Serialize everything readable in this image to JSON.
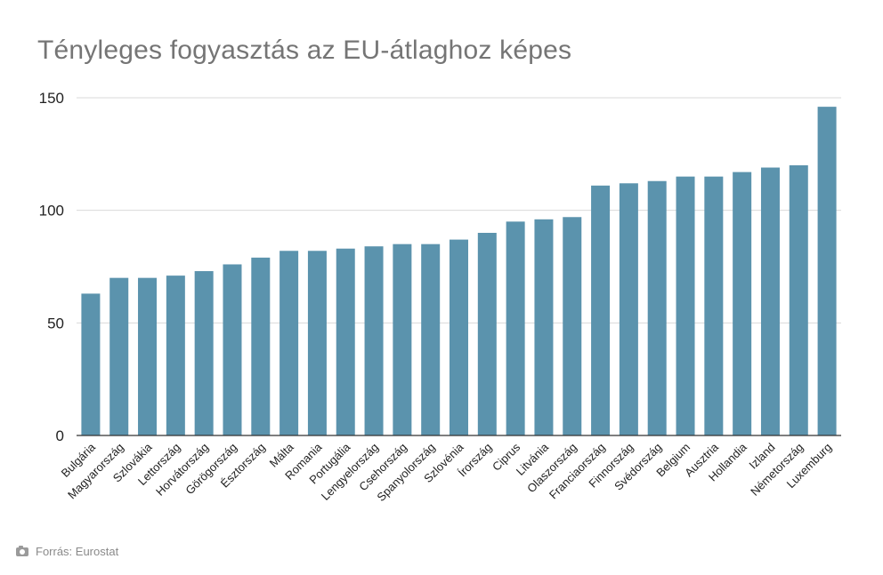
{
  "chart_data": {
    "type": "bar",
    "title": "Tényleges fogyasztás az EU-átlaghoz képes",
    "xlabel": "",
    "ylabel": "",
    "ylim": [
      0,
      150
    ],
    "yticks": [
      "0",
      "50",
      "100",
      "150"
    ],
    "grid": true,
    "bar_color": "#5b93ad",
    "categories": [
      "Bulgária",
      "Magyarország",
      "Szlovákia",
      "Lettország",
      "Horvátország",
      "Görögország",
      "Észtország",
      "Málta",
      "Romania",
      "Portugália",
      "Lengyelország",
      "Csehország",
      "Spanyolország",
      "Szlovénia",
      "Írország",
      "Ciprus",
      "Litvánia",
      "Olaszország",
      "Franciaország",
      "Finnország",
      "Svédország",
      "Belgium",
      "Ausztria",
      "Hollandia",
      "Izland",
      "Németország",
      "Luxemburg"
    ],
    "values": [
      63,
      70,
      70,
      71,
      73,
      76,
      79,
      82,
      82,
      83,
      84,
      85,
      85,
      87,
      90,
      95,
      96,
      97,
      111,
      112,
      113,
      115,
      115,
      117,
      119,
      120,
      146
    ]
  },
  "footer": {
    "icon": "camera-icon",
    "source": "Forrás: Eurostat"
  }
}
